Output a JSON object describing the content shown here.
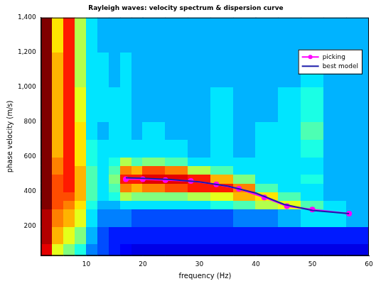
{
  "chart_data": {
    "type": "scatter",
    "title": "Rayleigh waves: velocity spectrum & dispersion curve",
    "x_label": "frequency (Hz)",
    "y_label": "phase velocity (m/s)",
    "xlim": [
      2,
      60
    ],
    "xticks": [
      10,
      20,
      30,
      40,
      50,
      60
    ],
    "ylim": [
      30,
      1400
    ],
    "yticks": [
      200,
      400,
      600,
      800,
      1000,
      1200,
      1400
    ],
    "grid": false,
    "legend": "upper right",
    "heatmap": {
      "x_edges": [
        2,
        4,
        6,
        8,
        10,
        12,
        14,
        16,
        18,
        20,
        24,
        28,
        32,
        36,
        40,
        44,
        48,
        52,
        56,
        60
      ],
      "y_edges": [
        30,
        100,
        200,
        300,
        350,
        400,
        450,
        500,
        550,
        600,
        700,
        800,
        1000,
        1200,
        1400
      ],
      "cells": [
        [
          0.9,
          0.6,
          0.5,
          0.4,
          0.25,
          0.2,
          0.15,
          0.12,
          0.1,
          0.1,
          0.1,
          0.1,
          0.1,
          0.1,
          0.1,
          0.1,
          0.1,
          0.1,
          0.1
        ],
        [
          0.95,
          0.7,
          0.6,
          0.5,
          0.3,
          0.2,
          0.15,
          0.15,
          0.15,
          0.15,
          0.15,
          0.15,
          0.15,
          0.15,
          0.15,
          0.15,
          0.15,
          0.15,
          0.15
        ],
        [
          0.95,
          0.75,
          0.7,
          0.6,
          0.35,
          0.25,
          0.25,
          0.25,
          0.2,
          0.2,
          0.2,
          0.2,
          0.2,
          0.25,
          0.25,
          0.3,
          0.35,
          0.35,
          0.3
        ],
        [
          1,
          0.8,
          0.75,
          0.65,
          0.4,
          0.3,
          0.3,
          0.35,
          0.35,
          0.35,
          0.35,
          0.35,
          0.4,
          0.45,
          0.55,
          0.6,
          0.45,
          0.35,
          0.3
        ],
        [
          1,
          0.8,
          0.8,
          0.7,
          0.45,
          0.35,
          0.4,
          0.55,
          0.5,
          0.5,
          0.5,
          0.55,
          0.6,
          0.7,
          0.65,
          0.45,
          0.35,
          0.3,
          0.3
        ],
        [
          1,
          0.8,
          0.85,
          0.7,
          0.45,
          0.35,
          0.45,
          0.75,
          0.7,
          0.75,
          0.8,
          0.85,
          0.85,
          0.75,
          0.45,
          0.35,
          0.35,
          0.3,
          0.3
        ],
        [
          1,
          0.8,
          0.85,
          0.7,
          0.45,
          0.35,
          0.5,
          0.85,
          0.85,
          0.9,
          0.9,
          0.85,
          0.7,
          0.5,
          0.35,
          0.35,
          0.4,
          0.3,
          0.3
        ],
        [
          1,
          0.75,
          0.85,
          0.7,
          0.45,
          0.35,
          0.45,
          0.75,
          0.7,
          0.8,
          0.75,
          0.55,
          0.45,
          0.35,
          0.35,
          0.35,
          0.35,
          0.3,
          0.3
        ],
        [
          1,
          0.75,
          0.85,
          0.65,
          0.4,
          0.35,
          0.4,
          0.55,
          0.45,
          0.5,
          0.45,
          0.35,
          0.35,
          0.35,
          0.35,
          0.35,
          0.35,
          0.3,
          0.3
        ],
        [
          1,
          0.7,
          0.85,
          0.65,
          0.4,
          0.35,
          0.35,
          0.35,
          0.35,
          0.35,
          0.35,
          0.3,
          0.35,
          0.3,
          0.35,
          0.35,
          0.4,
          0.3,
          0.3
        ],
        [
          1,
          0.7,
          0.85,
          0.65,
          0.35,
          0.3,
          0.35,
          0.35,
          0.3,
          0.35,
          0.3,
          0.3,
          0.35,
          0.3,
          0.35,
          0.35,
          0.45,
          0.3,
          0.3
        ],
        [
          1,
          0.7,
          0.85,
          0.6,
          0.35,
          0.35,
          0.35,
          0.35,
          0.3,
          0.3,
          0.3,
          0.3,
          0.35,
          0.3,
          0.3,
          0.35,
          0.4,
          0.3,
          0.3
        ],
        [
          1,
          0.7,
          0.85,
          0.55,
          0.35,
          0.35,
          0.3,
          0.35,
          0.3,
          0.3,
          0.3,
          0.3,
          0.3,
          0.3,
          0.3,
          0.3,
          0.35,
          0.3,
          0.3
        ],
        [
          1,
          0.65,
          0.85,
          0.55,
          0.35,
          0.3,
          0.3,
          0.3,
          0.3,
          0.3,
          0.3,
          0.3,
          0.3,
          0.3,
          0.3,
          0.3,
          0.3,
          0.3,
          0.3
        ]
      ]
    },
    "series": [
      {
        "name": "picking",
        "color": "#ff00ff",
        "marker": "circle",
        "line_style": "solid",
        "x": [
          17,
          20,
          24,
          28.5,
          33,
          37,
          41.5,
          45.5,
          50,
          56.5
        ],
        "values": [
          470,
          470,
          465,
          460,
          440,
          415,
          365,
          315,
          295,
          272
        ]
      },
      {
        "name": "best model",
        "color": "#1c1caa",
        "marker": "none",
        "line_style": "solid",
        "x": [
          17,
          20,
          25,
          30,
          35,
          40,
          45,
          50,
          56.5
        ],
        "values": [
          478,
          475,
          468,
          455,
          430,
          390,
          325,
          290,
          272
        ]
      }
    ]
  }
}
